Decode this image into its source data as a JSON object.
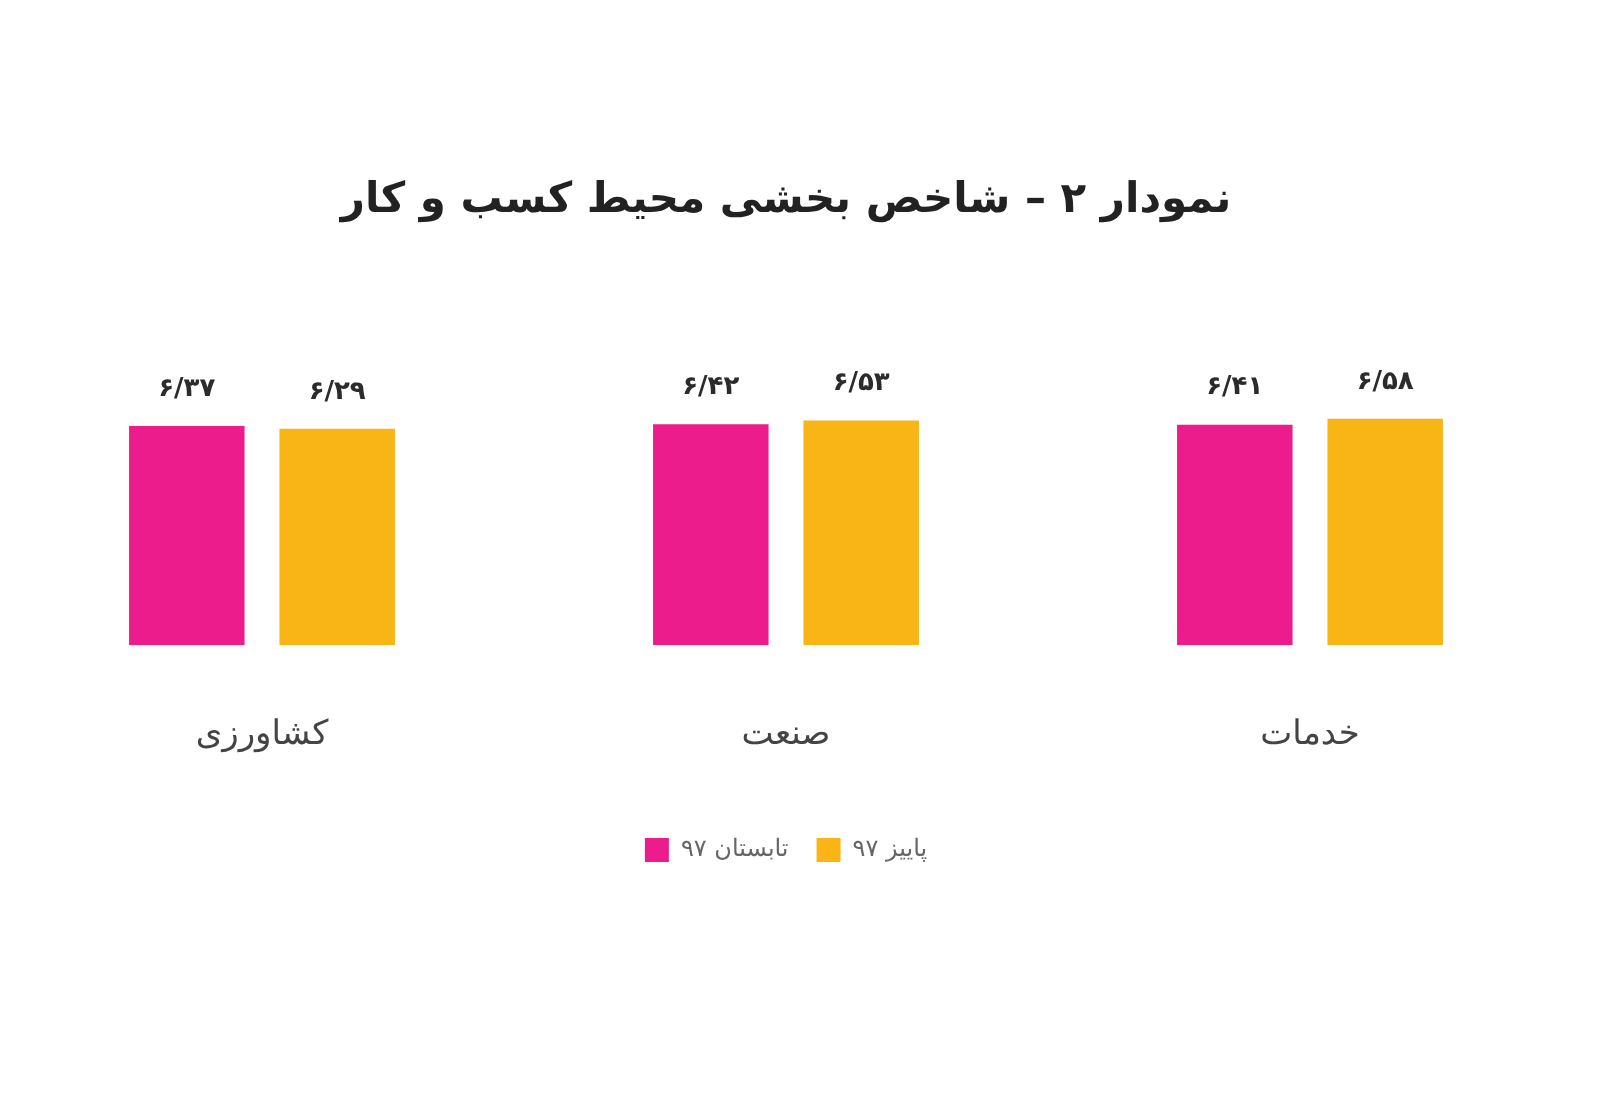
{
  "chart_data": {
    "type": "bar",
    "title": "نمودار ۲ – شاخص بخشی محیط کسب و کار",
    "categories": [
      "کشاورزی",
      "صنعت",
      "خدمات"
    ],
    "series": [
      {
        "name": "تابستان ۹۷",
        "color": "#ec1c8c",
        "values": [
          6.37,
          6.42,
          6.41
        ],
        "value_labels": [
          "۶/۳۷",
          "۶/۴۲",
          "۶/۴۱"
        ]
      },
      {
        "name": "پاییز ۹۷",
        "color": "#f9b515",
        "values": [
          6.29,
          6.53,
          6.58
        ],
        "value_labels": [
          "۶/۲۹",
          "۶/۵۳",
          "۶/۵۸"
        ]
      }
    ],
    "tick_labels": "x",
    "grid": false,
    "legend": "bottom"
  }
}
